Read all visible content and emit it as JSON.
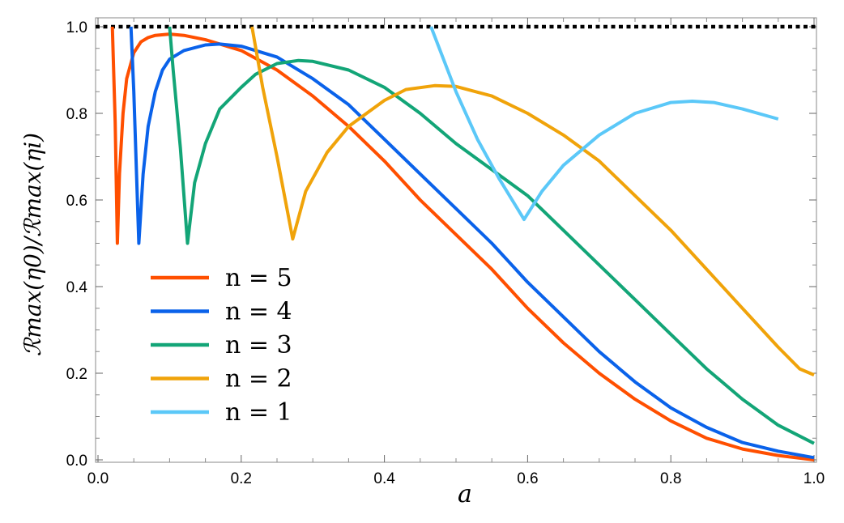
{
  "chart_data": {
    "type": "line",
    "title": "",
    "xlabel": "a",
    "ylabel": "ℛmax(η0)/ℛmax(ηi)",
    "xlim": [
      0.0,
      1.0
    ],
    "ylim": [
      0.0,
      1.0
    ],
    "x_ticks": [
      "0.0",
      "0.2",
      "0.4",
      "0.6",
      "0.8",
      "1.0"
    ],
    "y_ticks": [
      "0.0",
      "0.2",
      "0.4",
      "0.6",
      "0.8",
      "1.0"
    ],
    "grid": false,
    "legend_position": "lower-left",
    "reference_line": {
      "y": 1.0,
      "style": "dotted",
      "color": "#000000"
    },
    "series": [
      {
        "name": "n = 5",
        "color": "#FF4F00",
        "points": [
          [
            0.02,
            1.0
          ],
          [
            0.024,
            0.78
          ],
          [
            0.027,
            0.5
          ],
          [
            0.03,
            0.66
          ],
          [
            0.035,
            0.8
          ],
          [
            0.04,
            0.88
          ],
          [
            0.05,
            0.94
          ],
          [
            0.06,
            0.965
          ],
          [
            0.07,
            0.975
          ],
          [
            0.08,
            0.98
          ],
          [
            0.1,
            0.983
          ],
          [
            0.12,
            0.98
          ],
          [
            0.15,
            0.97
          ],
          [
            0.2,
            0.945
          ],
          [
            0.25,
            0.9
          ],
          [
            0.3,
            0.84
          ],
          [
            0.35,
            0.77
          ],
          [
            0.4,
            0.69
          ],
          [
            0.45,
            0.6
          ],
          [
            0.5,
            0.52
          ],
          [
            0.55,
            0.44
          ],
          [
            0.6,
            0.35
          ],
          [
            0.65,
            0.27
          ],
          [
            0.7,
            0.2
          ],
          [
            0.75,
            0.14
          ],
          [
            0.8,
            0.09
          ],
          [
            0.85,
            0.05
          ],
          [
            0.9,
            0.025
          ],
          [
            0.95,
            0.01
          ],
          [
            1.0,
            0.0
          ]
        ]
      },
      {
        "name": "n = 4",
        "color": "#0A62EA",
        "points": [
          [
            0.046,
            1.0
          ],
          [
            0.05,
            0.85
          ],
          [
            0.057,
            0.5
          ],
          [
            0.063,
            0.66
          ],
          [
            0.07,
            0.77
          ],
          [
            0.08,
            0.85
          ],
          [
            0.09,
            0.9
          ],
          [
            0.1,
            0.925
          ],
          [
            0.12,
            0.945
          ],
          [
            0.15,
            0.958
          ],
          [
            0.17,
            0.96
          ],
          [
            0.2,
            0.955
          ],
          [
            0.25,
            0.93
          ],
          [
            0.3,
            0.88
          ],
          [
            0.35,
            0.82
          ],
          [
            0.4,
            0.74
          ],
          [
            0.45,
            0.66
          ],
          [
            0.5,
            0.58
          ],
          [
            0.55,
            0.5
          ],
          [
            0.6,
            0.41
          ],
          [
            0.65,
            0.33
          ],
          [
            0.7,
            0.25
          ],
          [
            0.75,
            0.18
          ],
          [
            0.8,
            0.12
          ],
          [
            0.85,
            0.075
          ],
          [
            0.9,
            0.04
          ],
          [
            0.95,
            0.02
          ],
          [
            1.0,
            0.005
          ]
        ]
      },
      {
        "name": "n = 3",
        "color": "#13A577",
        "points": [
          [
            0.1,
            1.0
          ],
          [
            0.105,
            0.9
          ],
          [
            0.115,
            0.72
          ],
          [
            0.125,
            0.5
          ],
          [
            0.135,
            0.64
          ],
          [
            0.15,
            0.73
          ],
          [
            0.17,
            0.81
          ],
          [
            0.2,
            0.86
          ],
          [
            0.22,
            0.89
          ],
          [
            0.25,
            0.915
          ],
          [
            0.28,
            0.922
          ],
          [
            0.3,
            0.92
          ],
          [
            0.35,
            0.9
          ],
          [
            0.4,
            0.86
          ],
          [
            0.45,
            0.8
          ],
          [
            0.5,
            0.73
          ],
          [
            0.55,
            0.67
          ],
          [
            0.6,
            0.61
          ],
          [
            0.65,
            0.53
          ],
          [
            0.7,
            0.45
          ],
          [
            0.75,
            0.37
          ],
          [
            0.8,
            0.29
          ],
          [
            0.85,
            0.21
          ],
          [
            0.9,
            0.14
          ],
          [
            0.95,
            0.08
          ],
          [
            1.0,
            0.038
          ]
        ]
      },
      {
        "name": "n = 2",
        "color": "#F0A30A",
        "points": [
          [
            0.215,
            1.0
          ],
          [
            0.23,
            0.86
          ],
          [
            0.25,
            0.7
          ],
          [
            0.272,
            0.51
          ],
          [
            0.29,
            0.62
          ],
          [
            0.32,
            0.71
          ],
          [
            0.35,
            0.77
          ],
          [
            0.4,
            0.83
          ],
          [
            0.43,
            0.855
          ],
          [
            0.47,
            0.864
          ],
          [
            0.5,
            0.862
          ],
          [
            0.55,
            0.84
          ],
          [
            0.6,
            0.8
          ],
          [
            0.65,
            0.75
          ],
          [
            0.7,
            0.69
          ],
          [
            0.75,
            0.61
          ],
          [
            0.8,
            0.53
          ],
          [
            0.85,
            0.44
          ],
          [
            0.9,
            0.35
          ],
          [
            0.95,
            0.26
          ],
          [
            0.98,
            0.21
          ],
          [
            1.0,
            0.196
          ]
        ]
      },
      {
        "name": "n = 1",
        "color": "#5BC8F8",
        "points": [
          [
            0.465,
            1.0
          ],
          [
            0.5,
            0.85
          ],
          [
            0.53,
            0.74
          ],
          [
            0.56,
            0.65
          ],
          [
            0.595,
            0.555
          ],
          [
            0.62,
            0.62
          ],
          [
            0.65,
            0.68
          ],
          [
            0.7,
            0.75
          ],
          [
            0.75,
            0.8
          ],
          [
            0.8,
            0.825
          ],
          [
            0.83,
            0.828
          ],
          [
            0.86,
            0.825
          ],
          [
            0.9,
            0.81
          ],
          [
            0.95,
            0.787
          ]
        ]
      }
    ]
  }
}
